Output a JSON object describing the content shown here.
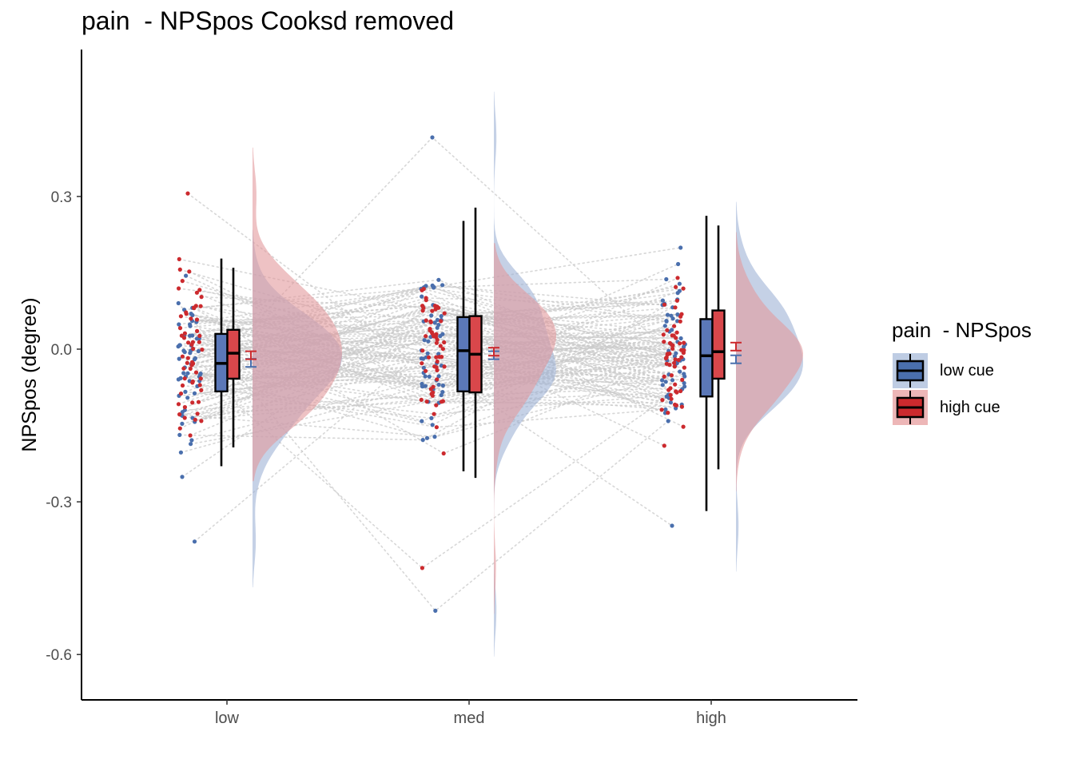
{
  "chart_data": {
    "type": "raincloud",
    "title": "pain  - NPSpos Cooksd removed",
    "xlabel": "",
    "ylabel": "NPSpos (degree)",
    "categories": [
      "low",
      "med",
      "high"
    ],
    "yticks": [
      0.3,
      0.0,
      -0.3,
      -0.6
    ],
    "ytick_labels": [
      "0.3",
      "0.0",
      "-0.3",
      "-0.6"
    ],
    "ylim": [
      -0.68,
      0.58
    ],
    "grid": false,
    "legend": {
      "title": "pain  - NPSpos",
      "placement": "right",
      "entries": [
        "low cue",
        "high cue"
      ]
    },
    "series": [
      {
        "name": "low cue",
        "color": "#4a6fad",
        "fill": "#5b78b8",
        "boxplots": [
          {
            "category": "low",
            "whisker_low": -0.23,
            "q1": -0.083,
            "median": -0.028,
            "q3": 0.03,
            "whisker_high": 0.178,
            "mean": -0.027
          },
          {
            "category": "med",
            "whisker_low": -0.24,
            "q1": -0.083,
            "median": -0.003,
            "q3": 0.063,
            "whisker_high": 0.252,
            "mean": -0.012
          },
          {
            "category": "high",
            "whisker_low": -0.318,
            "q1": -0.093,
            "median": -0.013,
            "q3": 0.059,
            "whisker_high": 0.262,
            "mean": -0.02
          }
        ],
        "density_peak": [
          -0.01,
          -0.005,
          -0.02
        ]
      },
      {
        "name": "high cue",
        "color": "#cc2a2e",
        "fill": "#d9474b",
        "boxplots": [
          {
            "category": "low",
            "whisker_low": -0.193,
            "q1": -0.058,
            "median": -0.008,
            "q3": 0.038,
            "whisker_high": 0.16,
            "mean": -0.012
          },
          {
            "category": "med",
            "whisker_low": -0.253,
            "q1": -0.085,
            "median": -0.01,
            "q3": 0.065,
            "whisker_high": 0.278,
            "mean": -0.005
          },
          {
            "category": "high",
            "whisker_low": -0.236,
            "q1": -0.058,
            "median": -0.005,
            "q3": 0.076,
            "whisker_high": 0.243,
            "mean": 0.005
          }
        ],
        "density_peak": [
          0.0,
          0.0,
          -0.02
        ]
      }
    ],
    "notable_points": [
      {
        "category": "low",
        "series": "low cue",
        "y": -0.378
      },
      {
        "category": "low",
        "series": "high cue",
        "y": 0.306
      },
      {
        "category": "med",
        "series": "low cue",
        "y": 0.416
      },
      {
        "category": "med",
        "series": "low cue",
        "y": -0.514
      },
      {
        "category": "med",
        "series": "high cue",
        "y": -0.43
      },
      {
        "category": "high",
        "series": "low cue",
        "y": -0.347
      }
    ]
  }
}
